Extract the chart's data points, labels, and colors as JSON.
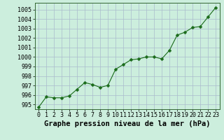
{
  "x": [
    0,
    1,
    2,
    3,
    4,
    5,
    6,
    7,
    8,
    9,
    10,
    11,
    12,
    13,
    14,
    15,
    16,
    17,
    18,
    19,
    20,
    21,
    22,
    23
  ],
  "y": [
    994.7,
    995.8,
    995.7,
    995.7,
    995.9,
    996.6,
    997.3,
    997.1,
    996.8,
    997.0,
    998.7,
    999.2,
    999.7,
    999.8,
    1000.0,
    1000.0,
    999.8,
    1000.7,
    1002.3,
    1002.6,
    1003.1,
    1003.2,
    1004.2,
    1005.2
  ],
  "line_color": "#1a6b1a",
  "marker": "D",
  "marker_size": 2.5,
  "bg_color": "#cceedd",
  "grid_color": "#aabbcc",
  "ylabel_ticks": [
    995,
    996,
    997,
    998,
    999,
    1000,
    1001,
    1002,
    1003,
    1004,
    1005
  ],
  "xlabel_label": "Graphe pression niveau de la mer (hPa)",
  "ylim": [
    994.5,
    1005.7
  ],
  "xlim": [
    -0.5,
    23.5
  ],
  "label_fontsize": 7.5,
  "tick_fontsize": 6.0
}
